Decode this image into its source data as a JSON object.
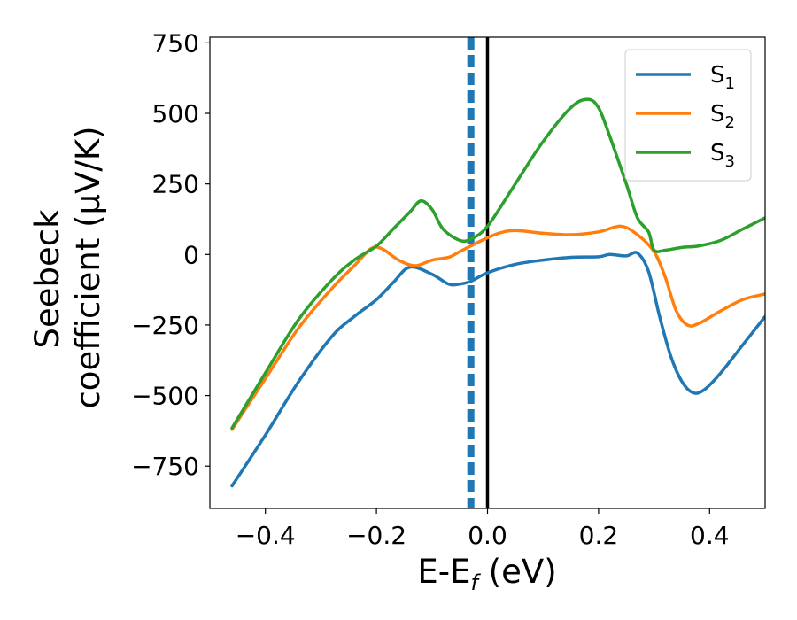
{
  "chart_data": {
    "type": "line",
    "xlabel": {
      "base": "E-E",
      "sub": "f",
      "tail": " (eV)"
    },
    "ylabel": {
      "line1": "Seebeck",
      "line2": "coefficient  (μV/K)"
    },
    "xlim": [
      -0.5,
      0.5
    ],
    "ylim": [
      -900,
      770
    ],
    "xticks": [
      -0.4,
      -0.2,
      0.0,
      0.2,
      0.4
    ],
    "xtick_labels": [
      "−0.4",
      "−0.2",
      "0.0",
      "0.2",
      "0.4"
    ],
    "yticks": [
      -750,
      -500,
      -250,
      0,
      250,
      500,
      750
    ],
    "ytick_labels": [
      "−750",
      "−500",
      "−250",
      "0",
      "250",
      "500",
      "750"
    ],
    "vlines": [
      {
        "x": -0.03,
        "color": "#1f77b4",
        "style": "dashed"
      },
      {
        "x": 0.0,
        "color": "#000000",
        "style": "solid"
      }
    ],
    "legend_position": "top-right",
    "grid": false,
    "series": [
      {
        "name": "S",
        "sub": "1",
        "color": "#1f77b4",
        "x": [
          -0.46,
          -0.4,
          -0.34,
          -0.28,
          -0.24,
          -0.2,
          -0.17,
          -0.14,
          -0.1,
          -0.07,
          -0.05,
          -0.03,
          0.0,
          0.05,
          0.1,
          0.15,
          0.2,
          0.22,
          0.25,
          0.27,
          0.29,
          0.31,
          0.33,
          0.35,
          0.37,
          0.39,
          0.42,
          0.46,
          0.5
        ],
        "y": [
          -820,
          -640,
          -450,
          -290,
          -220,
          -160,
          -100,
          -45,
          -70,
          -105,
          -105,
          -95,
          -65,
          -35,
          -20,
          -10,
          -8,
          0,
          -5,
          5,
          -60,
          -220,
          -360,
          -450,
          -490,
          -480,
          -420,
          -320,
          -220
        ]
      },
      {
        "name": "S",
        "sub": "2",
        "color": "#ff7f0e",
        "x": [
          -0.46,
          -0.4,
          -0.34,
          -0.28,
          -0.24,
          -0.21,
          -0.19,
          -0.16,
          -0.13,
          -0.1,
          -0.07,
          -0.05,
          -0.03,
          -0.01,
          0.02,
          0.05,
          0.1,
          0.15,
          0.2,
          0.24,
          0.27,
          0.3,
          0.32,
          0.34,
          0.36,
          0.38,
          0.42,
          0.46,
          0.5
        ],
        "y": [
          -620,
          -440,
          -260,
          -120,
          -40,
          20,
          20,
          -20,
          -40,
          -20,
          -10,
          10,
          30,
          50,
          75,
          85,
          75,
          70,
          80,
          100,
          70,
          10,
          -80,
          -200,
          -250,
          -245,
          -200,
          -160,
          -140
        ]
      },
      {
        "name": "S",
        "sub": "3",
        "color": "#2ca02c",
        "x": [
          -0.46,
          -0.4,
          -0.34,
          -0.28,
          -0.24,
          -0.2,
          -0.17,
          -0.14,
          -0.12,
          -0.1,
          -0.08,
          -0.05,
          -0.03,
          0.0,
          0.05,
          0.1,
          0.15,
          0.18,
          0.2,
          0.22,
          0.25,
          0.27,
          0.29,
          0.3,
          0.32,
          0.35,
          0.38,
          0.42,
          0.46,
          0.5
        ],
        "y": [
          -615,
          -420,
          -230,
          -90,
          -20,
          30,
          90,
          150,
          190,
          160,
          90,
          50,
          55,
          100,
          250,
          400,
          520,
          550,
          520,
          420,
          250,
          130,
          80,
          15,
          15,
          25,
          30,
          50,
          90,
          130
        ]
      }
    ]
  }
}
